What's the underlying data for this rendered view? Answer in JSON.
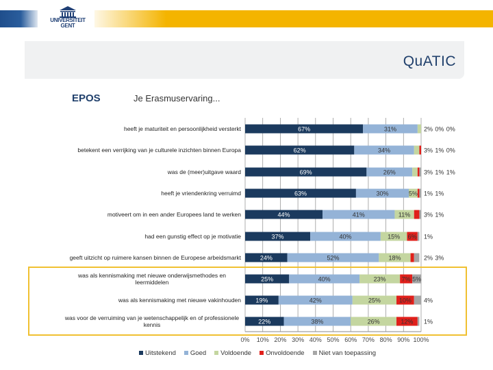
{
  "header": {
    "logo_text": [
      "UNIVERSITEIT",
      "GENT"
    ],
    "brand_colors": {
      "blue": "#1f4e8c",
      "yellow": "#f4b400"
    }
  },
  "panel": {
    "title": "QuATIC"
  },
  "section_label": "EPOS",
  "chart_data": {
    "type": "bar",
    "orientation": "horizontal",
    "stacked": true,
    "title": "Je Erasmuservaring...",
    "categories": [
      "heeft je maturiteit en persoonlijkheid versterkt",
      "betekent een verrijking van je culturele inzichten binnen Europa",
      "was de (meer)uitgave waard",
      "heeft je vriendenkring verruimd",
      "motiveert om in een ander Europees land te werken",
      "had een gunstig effect op je motivatie",
      "geeft uitzicht op ruimere kansen binnen de Europese arbeidsmarkt",
      "was als kennismaking met nieuwe onderwijsmethodes en leermiddelen",
      "was als kennismaking met nieuwe vakinhouden",
      "was voor de verruiming van je wetenschappelijk en of professionele kennis"
    ],
    "series": [
      {
        "name": "Uitstekend",
        "color": "#1b3a5e",
        "values": [
          67,
          62,
          69,
          63,
          44,
          37,
          24,
          25,
          19,
          22
        ]
      },
      {
        "name": "Goed",
        "color": "#94b3d7",
        "values": [
          31,
          34,
          26,
          30,
          41,
          40,
          52,
          40,
          42,
          38
        ]
      },
      {
        "name": "Voldoende",
        "color": "#c4d6a0",
        "values": [
          2,
          3,
          3,
          5,
          11,
          15,
          18,
          23,
          25,
          26
        ]
      },
      {
        "name": "Onvoldoende",
        "color": "#e0201b",
        "values": [
          0,
          1,
          1,
          1,
          3,
          6,
          2,
          7,
          10,
          12
        ]
      },
      {
        "name": "Niet van toepassing",
        "color": "#a6a6a6",
        "values": [
          0,
          0,
          1,
          1,
          1,
          1,
          3,
          5,
          4,
          1
        ]
      }
    ],
    "xticks": [
      "0%",
      "10%",
      "20%",
      "30%",
      "40%",
      "50%",
      "60%",
      "70%",
      "80%",
      "90%",
      "100%"
    ],
    "xlim": [
      0,
      100
    ],
    "grid": true,
    "legend_position": "bottom",
    "highlight_rows": [
      7,
      8,
      9
    ]
  }
}
